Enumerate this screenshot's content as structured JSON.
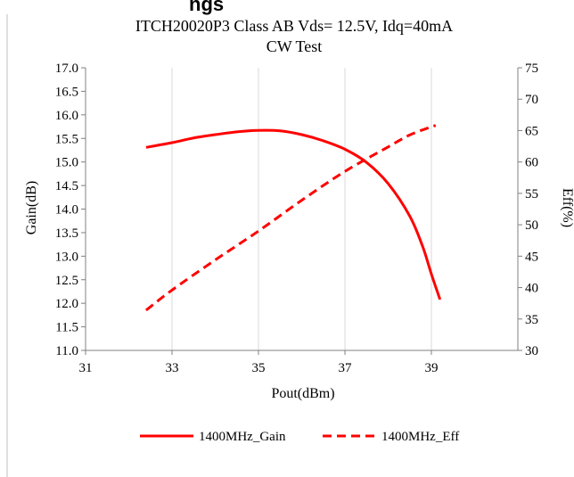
{
  "chart_data": {
    "type": "line",
    "title": "ITCH20020P3 Class AB Vds= 12.5V, Idq=40mA",
    "subtitle": "CW Test",
    "partial_header_text": "ngs",
    "xlabel": "Pout(dBm)",
    "ylabel": "Gain(dB)",
    "y2label": "Eff(%)",
    "xlim": [
      31,
      41
    ],
    "ylim": [
      11.0,
      17.0
    ],
    "y2lim": [
      30,
      75
    ],
    "xticks": [
      31,
      33,
      35,
      37,
      39
    ],
    "yticks": [
      "11.0",
      "11.5",
      "12.0",
      "12.5",
      "13.0",
      "13.5",
      "14.0",
      "14.5",
      "15.0",
      "15.5",
      "16.0",
      "16.5",
      "17.0"
    ],
    "y2ticks": [
      30,
      35,
      40,
      45,
      50,
      55,
      60,
      65,
      70,
      75
    ],
    "grid": "vertical",
    "legend_position": "bottom",
    "series": [
      {
        "name": "1400MHz_Gain",
        "axis": "left",
        "style": "solid",
        "color": "#ff0000",
        "x": [
          32.4,
          33.0,
          33.5,
          34.0,
          34.5,
          35.0,
          35.5,
          36.0,
          36.5,
          37.0,
          37.5,
          38.0,
          38.5,
          38.8,
          39.0,
          39.2
        ],
        "y": [
          15.31,
          15.41,
          15.51,
          15.58,
          15.64,
          15.67,
          15.66,
          15.58,
          15.45,
          15.27,
          14.99,
          14.54,
          13.85,
          13.2,
          12.62,
          12.08
        ]
      },
      {
        "name": "1400MHz_Eff",
        "axis": "right",
        "style": "dashed",
        "color": "#ff0000",
        "x": [
          32.4,
          33.0,
          34.0,
          35.0,
          36.0,
          37.0,
          38.0,
          38.5,
          39.0,
          39.1
        ],
        "y": [
          36.4,
          39.6,
          44.4,
          49.0,
          53.9,
          58.5,
          62.4,
          64.3,
          65.6,
          65.8
        ]
      }
    ]
  }
}
